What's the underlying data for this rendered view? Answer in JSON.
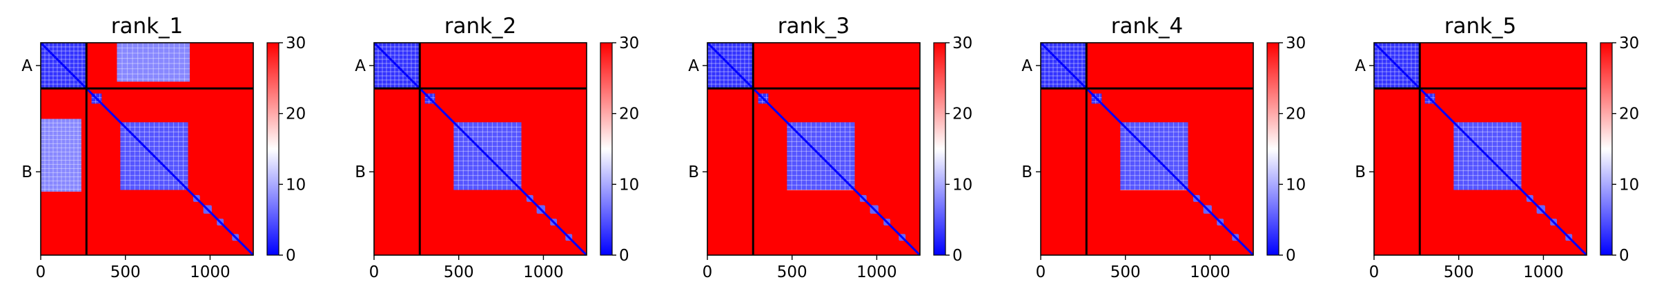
{
  "chart_data": [
    {
      "type": "heatmap",
      "title": "rank_1",
      "x_ticks": [
        0,
        500,
        1000
      ],
      "xlim": [
        0,
        1255
      ],
      "y_tick_labels": [
        "A",
        "B"
      ],
      "chain_boundary": 270,
      "colorbar": {
        "min": 0,
        "max": 30,
        "ticks": [
          0,
          10,
          20,
          30
        ],
        "colors": [
          "#0000ff",
          "#ffffff",
          "#ff0000"
        ]
      },
      "low_error_blocks": [
        {
          "x": [
            0,
            270
          ],
          "y": [
            0,
            270
          ],
          "value": 3
        },
        {
          "x": [
            450,
            880
          ],
          "y": [
            0,
            230
          ],
          "value": 8
        },
        {
          "x": [
            0,
            240
          ],
          "y": [
            450,
            880
          ],
          "value": 8
        },
        {
          "x": [
            470,
            870
          ],
          "y": [
            470,
            870
          ],
          "value": 5
        },
        {
          "x": [
            300,
            360
          ],
          "y": [
            300,
            360
          ],
          "value": 3
        }
      ]
    },
    {
      "type": "heatmap",
      "title": "rank_2",
      "x_ticks": [
        0,
        500,
        1000
      ],
      "xlim": [
        0,
        1255
      ],
      "y_tick_labels": [
        "A",
        "B"
      ],
      "chain_boundary": 270,
      "colorbar": {
        "min": 0,
        "max": 30,
        "ticks": [
          0,
          10,
          20,
          30
        ],
        "colors": [
          "#0000ff",
          "#ffffff",
          "#ff0000"
        ]
      },
      "low_error_blocks": [
        {
          "x": [
            0,
            270
          ],
          "y": [
            0,
            270
          ],
          "value": 3
        },
        {
          "x": [
            470,
            870
          ],
          "y": [
            470,
            870
          ],
          "value": 5
        },
        {
          "x": [
            300,
            360
          ],
          "y": [
            300,
            360
          ],
          "value": 3
        }
      ]
    },
    {
      "type": "heatmap",
      "title": "rank_3",
      "x_ticks": [
        0,
        500,
        1000
      ],
      "xlim": [
        0,
        1255
      ],
      "y_tick_labels": [
        "A",
        "B"
      ],
      "chain_boundary": 270,
      "colorbar": {
        "min": 0,
        "max": 30,
        "ticks": [
          0,
          10,
          20,
          30
        ],
        "colors": [
          "#0000ff",
          "#ffffff",
          "#ff0000"
        ]
      },
      "low_error_blocks": [
        {
          "x": [
            0,
            270
          ],
          "y": [
            0,
            270
          ],
          "value": 3
        },
        {
          "x": [
            470,
            870
          ],
          "y": [
            470,
            870
          ],
          "value": 5
        },
        {
          "x": [
            300,
            360
          ],
          "y": [
            300,
            360
          ],
          "value": 3
        }
      ]
    },
    {
      "type": "heatmap",
      "title": "rank_4",
      "x_ticks": [
        0,
        500,
        1000
      ],
      "xlim": [
        0,
        1255
      ],
      "y_tick_labels": [
        "A",
        "B"
      ],
      "chain_boundary": 270,
      "colorbar": {
        "min": 0,
        "max": 30,
        "ticks": [
          0,
          10,
          20,
          30
        ],
        "colors": [
          "#0000ff",
          "#ffffff",
          "#ff0000"
        ]
      },
      "low_error_blocks": [
        {
          "x": [
            0,
            270
          ],
          "y": [
            0,
            270
          ],
          "value": 3
        },
        {
          "x": [
            470,
            870
          ],
          "y": [
            470,
            870
          ],
          "value": 5
        },
        {
          "x": [
            300,
            360
          ],
          "y": [
            300,
            360
          ],
          "value": 3
        }
      ]
    },
    {
      "type": "heatmap",
      "title": "rank_5",
      "x_ticks": [
        0,
        500,
        1000
      ],
      "xlim": [
        0,
        1255
      ],
      "y_tick_labels": [
        "A",
        "B"
      ],
      "chain_boundary": 270,
      "colorbar": {
        "min": 0,
        "max": 30,
        "ticks": [
          0,
          10,
          20,
          30
        ],
        "colors": [
          "#0000ff",
          "#ffffff",
          "#ff0000"
        ]
      },
      "low_error_blocks": [
        {
          "x": [
            0,
            270
          ],
          "y": [
            0,
            270
          ],
          "value": 3
        },
        {
          "x": [
            470,
            870
          ],
          "y": [
            470,
            870
          ],
          "value": 5
        },
        {
          "x": [
            300,
            360
          ],
          "y": [
            300,
            360
          ],
          "value": 3
        }
      ]
    }
  ]
}
